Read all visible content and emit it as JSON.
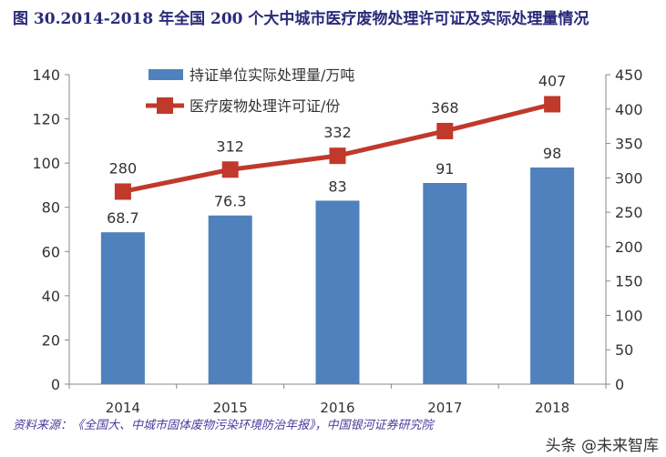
{
  "title": "图 30.2014-2018 年全国 200 个大中城市医疗废物处理许可证及实际处理量情况",
  "source": "资料来源：《全国大、中城市固体废物污染环境防治年报》，中国银河证券研究院",
  "watermark": "头条 @未来智库",
  "chart_data": {
    "type": "bar+line",
    "categories": [
      "2014",
      "2015",
      "2016",
      "2017",
      "2018"
    ],
    "series": [
      {
        "name": "持证单位实际处理量/万吨",
        "type": "bar",
        "axis": "left",
        "color": "#4f81bd",
        "values": [
          68.7,
          76.3,
          83,
          91,
          98
        ],
        "labels": [
          "68.7",
          "76.3",
          "83",
          "91",
          "98"
        ]
      },
      {
        "name": "医疗废物处理许可证/份",
        "type": "line",
        "axis": "right",
        "color": "#c0392b",
        "values": [
          280,
          312,
          332,
          368,
          407
        ],
        "labels": [
          "280",
          "312",
          "332",
          "368",
          "407"
        ]
      }
    ],
    "left_axis": {
      "min": 0,
      "max": 140,
      "step": 20,
      "ticks": [
        "0",
        "20",
        "40",
        "60",
        "80",
        "100",
        "120",
        "140"
      ]
    },
    "right_axis": {
      "min": 0,
      "max": 450,
      "step": 50,
      "ticks": [
        "0",
        "50",
        "100",
        "150",
        "200",
        "250",
        "300",
        "350",
        "400",
        "450"
      ]
    },
    "grid": false,
    "legend": "top-left"
  }
}
